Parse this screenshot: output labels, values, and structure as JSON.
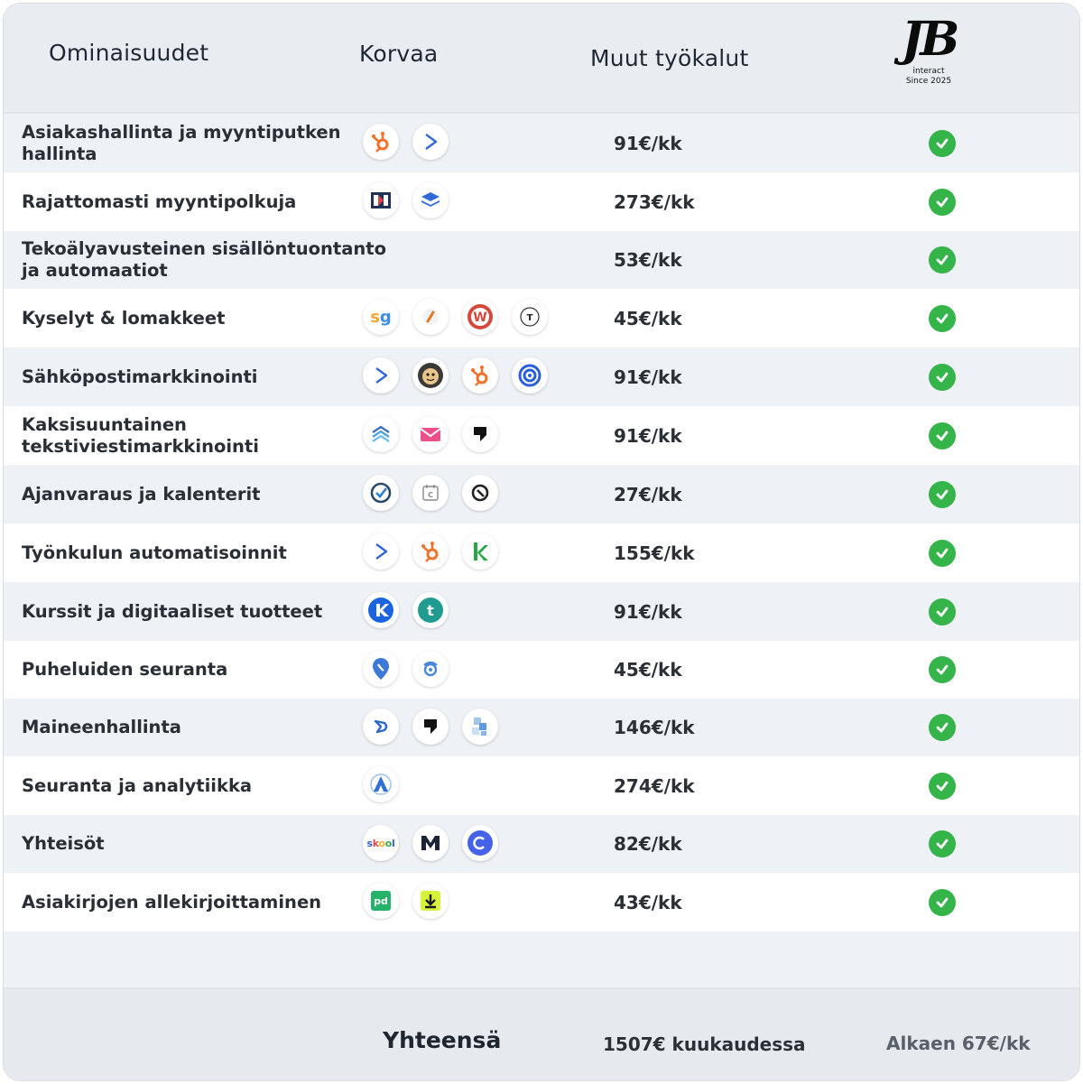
{
  "header": {
    "features": "Ominaisuudet",
    "replaces": "Korvaa",
    "others": "Muut työkalut",
    "logo": {
      "mark": "JB",
      "line1": "interact",
      "line2": "Since 2025"
    }
  },
  "colors": {
    "check": "#35b44a",
    "header_bg": "#e9edf2",
    "row_shade": "#eef1f5"
  },
  "rows": [
    {
      "feature": "Asiakashallinta ja myyntiputken hallinta",
      "price": "91€/kk",
      "included": true,
      "icons": [
        "hubspot-icon",
        "activecampaign-icon"
      ]
    },
    {
      "feature": "Rajattomasti myyntipolkuja",
      "price": "273€/kk",
      "included": true,
      "icons": [
        "clickfunnels-icon",
        "layers-icon"
      ]
    },
    {
      "feature": "Tekoälyavusteinen sisällöntuontanto ja automaatiot",
      "price": "53€/kk",
      "included": true,
      "icons": []
    },
    {
      "feature": "Kyselyt & lomakkeet",
      "price": "45€/kk",
      "included": true,
      "icons": [
        "surveygizmo-icon",
        "pencil-icon",
        "wufoo-icon",
        "typeform-icon"
      ]
    },
    {
      "feature": "Sähköpostimarkkinointi",
      "price": "91€/kk",
      "included": true,
      "icons": [
        "activecampaign-icon",
        "mailchimp-icon",
        "hubspot-icon",
        "target-icon"
      ]
    },
    {
      "feature": "Kaksisuuntainen tekstiviestimarkkinointi",
      "price": "91€/kk",
      "included": true,
      "icons": [
        "chevron-stack-icon",
        "envelope-icon",
        "podium-icon"
      ]
    },
    {
      "feature": "Ajanvaraus ja kalenterit",
      "price": "27€/kk",
      "included": true,
      "icons": [
        "check-circle-icon",
        "calendar-icon",
        "acuity-icon"
      ]
    },
    {
      "feature": "Työnkulun automatisoinnit",
      "price": "155€/kk",
      "included": true,
      "icons": [
        "activecampaign-icon",
        "hubspot-icon",
        "keap-icon"
      ]
    },
    {
      "feature": "Kurssit ja digitaaliset tuotteet",
      "price": "91€/kk",
      "included": true,
      "icons": [
        "kajabi-icon",
        "teachable-icon"
      ]
    },
    {
      "feature": "Puheluiden seuranta",
      "price": "45€/kk",
      "included": true,
      "icons": [
        "location-pin-icon",
        "callrail-icon"
      ]
    },
    {
      "feature": "Maineenhallinta",
      "price": "146€/kk",
      "included": true,
      "icons": [
        "birdeye-icon",
        "podium-icon",
        "puzzle-icon"
      ]
    },
    {
      "feature": "Seuranta ja analytiikka",
      "price": "274€/kk",
      "included": true,
      "icons": [
        "analytics-icon"
      ]
    },
    {
      "feature": "Yhteisöt",
      "price": "82€/kk",
      "included": true,
      "icons": [
        "skool-icon",
        "mighty-icon",
        "circle-icon"
      ]
    },
    {
      "feature": "Asiakirjojen allekirjoittaminen",
      "price": "43€/kk",
      "included": true,
      "icons": [
        "pandadoc-icon",
        "download-icon"
      ]
    }
  ],
  "footer": {
    "label": "Yhteensä",
    "others_total": "1507€ kuukaudessa",
    "ours": "Alkaen 67€/kk"
  }
}
